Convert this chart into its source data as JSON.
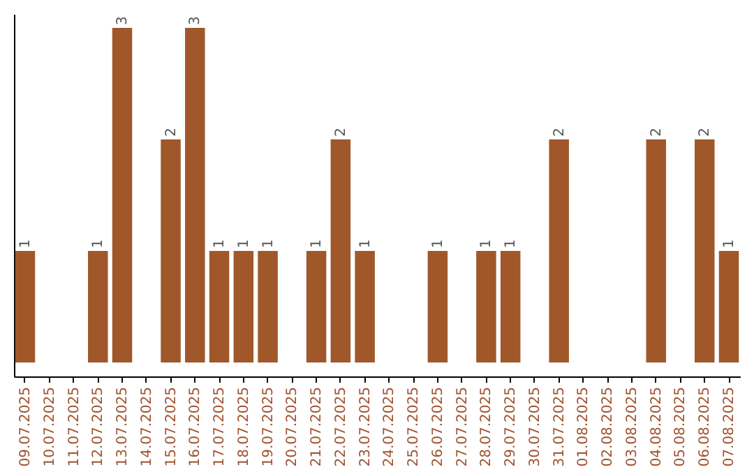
{
  "chart_data": {
    "type": "bar",
    "categories": [
      "09.07.2025",
      "10.07.2025",
      "11.07.2025",
      "12.07.2025",
      "13.07.2025",
      "14.07.2025",
      "15.07.2025",
      "16.07.2025",
      "17.07.2025",
      "18.07.2025",
      "19.07.2025",
      "20.07.2025",
      "21.07.2025",
      "22.07.2025",
      "23.07.2025",
      "24.07.2025",
      "25.07.2025",
      "26.07.2025",
      "27.07.2025",
      "28.07.2025",
      "29.07.2025",
      "30.07.2025",
      "31.07.2025",
      "01.08.2025",
      "02.08.2025",
      "03.08.2025",
      "04.08.2025",
      "05.08.2025",
      "06.08.2025",
      "07.08.2025"
    ],
    "values": [
      1,
      0,
      0,
      1,
      3,
      0,
      2,
      3,
      1,
      1,
      1,
      0,
      1,
      2,
      1,
      0,
      0,
      1,
      0,
      1,
      1,
      0,
      2,
      0,
      0,
      0,
      2,
      0,
      2,
      1
    ],
    "value_labels": [
      "1",
      null,
      null,
      "1",
      "3",
      null,
      "2",
      "3",
      "1",
      "1",
      "1",
      null,
      "1",
      "2",
      "1",
      null,
      null,
      "1",
      null,
      "1",
      "1",
      null,
      "2",
      null,
      null,
      null,
      "2",
      null,
      "2",
      "1"
    ],
    "color": "#a0582a",
    "tick_labels": "x"
  }
}
